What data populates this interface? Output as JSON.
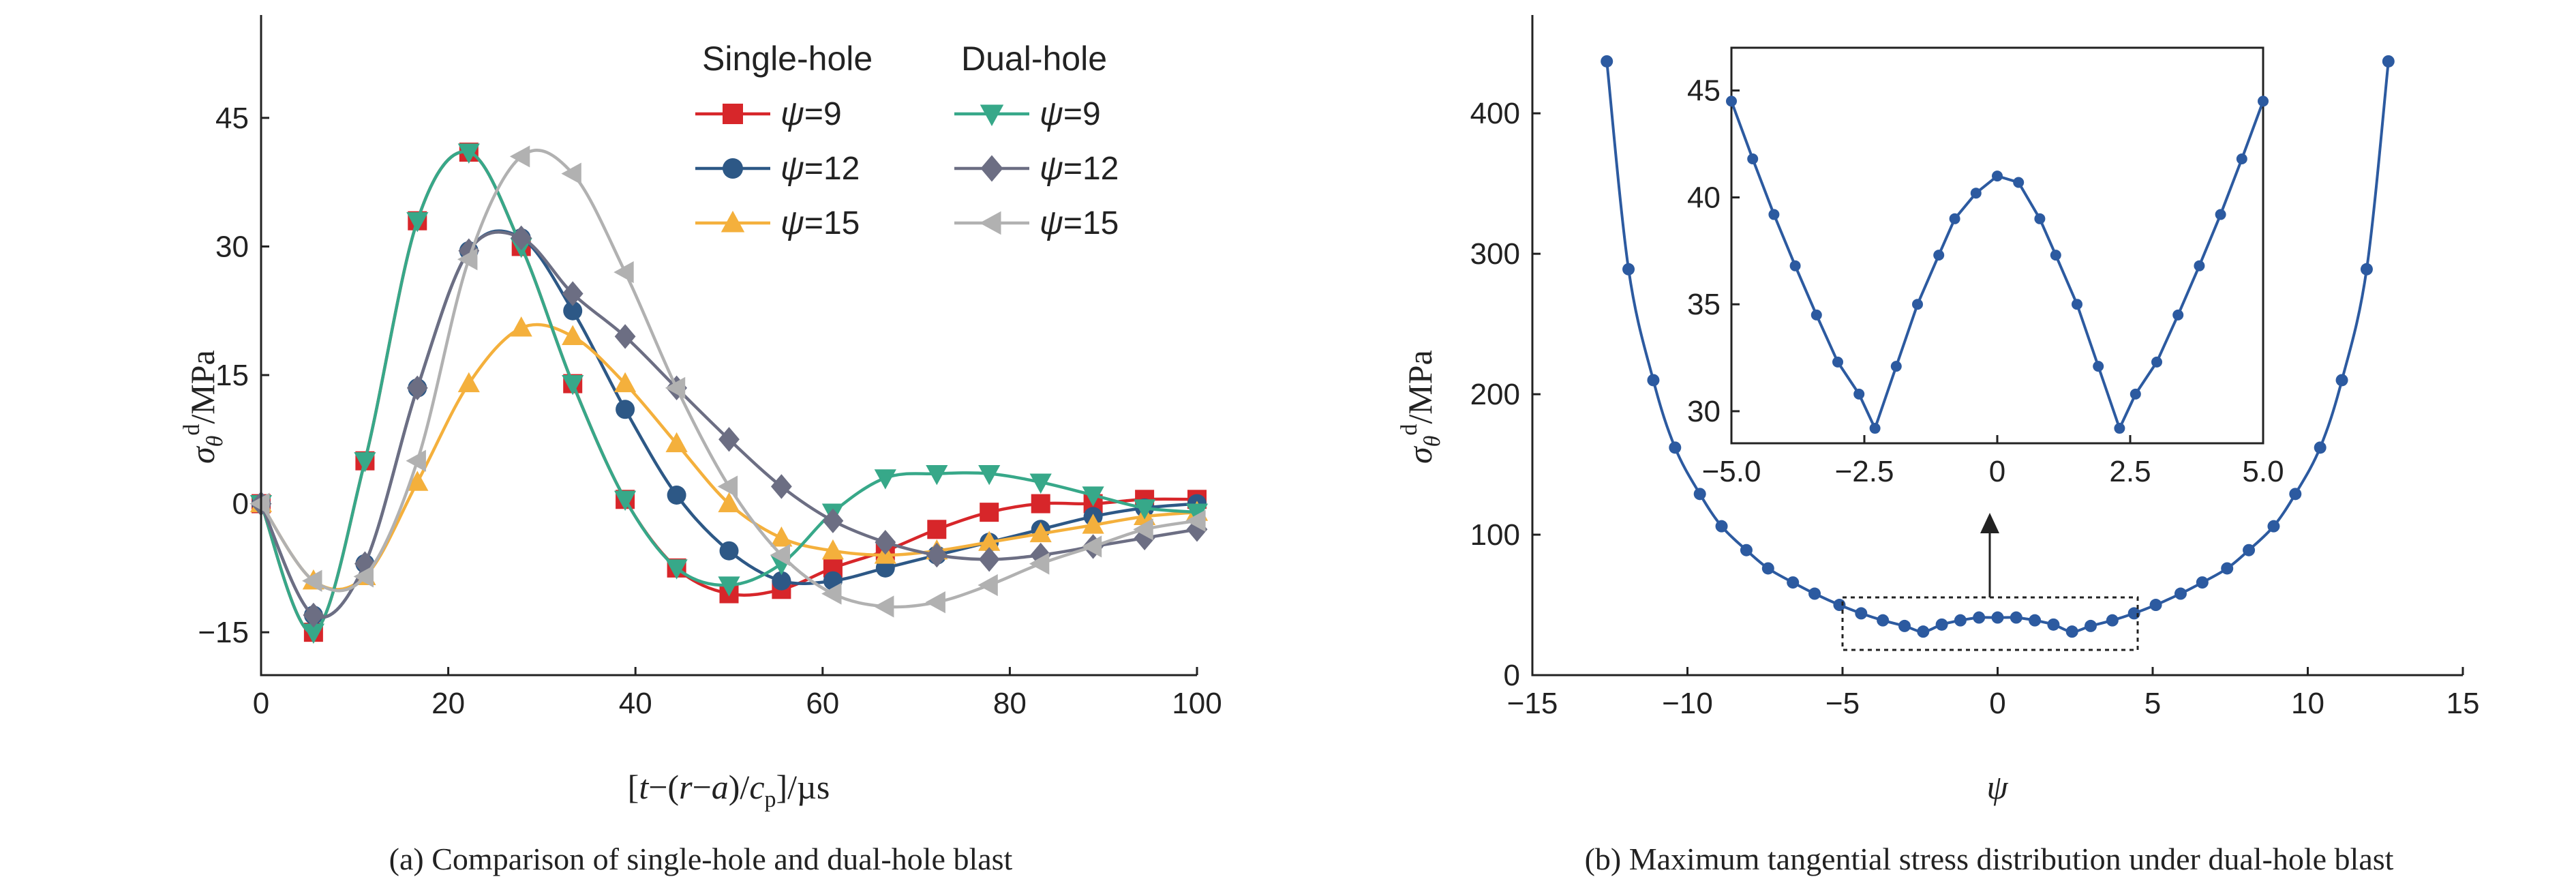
{
  "chart_data": [
    {
      "type": "line",
      "caption": "(a) Comparison of single-hole and dual-hole blast",
      "xlabel_parts": [
        "[",
        "t",
        "−(",
        "r",
        "−",
        "a",
        ")/",
        "c",
        "p",
        "]/µs"
      ],
      "ylabel_parts": [
        "σ",
        "θ",
        "d",
        "/MPa"
      ],
      "xlim": [
        0,
        100
      ],
      "ylim": [
        -20,
        57
      ],
      "xticks": [
        0,
        20,
        40,
        60,
        80,
        100
      ],
      "yticks": [
        -15,
        0,
        15,
        30,
        45
      ],
      "grid": false,
      "legend": {
        "placement": "top-right",
        "headers": [
          "Single-hole",
          "Dual-hole"
        ],
        "symbol": "ψ",
        "entry_labels": [
          "=9",
          "=12",
          "=15",
          "=9",
          "=12",
          "=15"
        ]
      },
      "series": [
        {
          "group": "Single-hole",
          "psi": 9,
          "color": "#d7262a",
          "marker": "square",
          "x": [
            0,
            5.6,
            11.1,
            16.7,
            22.2,
            27.8,
            33.3,
            38.9,
            44.4,
            50.0,
            55.6,
            61.1,
            66.7,
            72.2,
            77.8,
            83.3,
            88.9,
            94.4,
            100
          ],
          "y": [
            0,
            -15,
            5,
            33,
            41,
            30,
            14,
            0.5,
            -7.5,
            -10.5,
            -10,
            -7.5,
            -5.5,
            -3,
            -1,
            0,
            0,
            0.5,
            0.5
          ]
        },
        {
          "group": "Single-hole",
          "psi": 12,
          "color": "#2d5886",
          "marker": "circle",
          "x": [
            0,
            5.6,
            11.1,
            16.7,
            22.2,
            27.8,
            33.3,
            38.9,
            44.4,
            50.0,
            55.6,
            61.1,
            66.7,
            72.2,
            77.8,
            83.3,
            88.9,
            94.4,
            100
          ],
          "y": [
            0,
            -13,
            -7,
            13.5,
            29.5,
            31,
            22.5,
            11,
            1,
            -5.5,
            -9,
            -9,
            -7.5,
            -6,
            -4.5,
            -3,
            -1.5,
            -0.5,
            0
          ]
        },
        {
          "group": "Single-hole",
          "psi": 15,
          "color": "#f4b03c",
          "marker": "triangle-up",
          "x": [
            0,
            5.6,
            11.1,
            16.7,
            22.2,
            27.8,
            33.3,
            38.9,
            44.4,
            50.0,
            55.6,
            61.1,
            66.7,
            72.2,
            77.8,
            83.3,
            88.9,
            94.4,
            100
          ],
          "y": [
            0,
            -9,
            -8.5,
            2.5,
            14,
            20.5,
            19.5,
            14,
            7,
            0,
            -4,
            -5.5,
            -6,
            -5.5,
            -4.5,
            -3.5,
            -2.5,
            -1.5,
            -1
          ]
        },
        {
          "group": "Dual-hole",
          "psi": 9,
          "color": "#37a889",
          "marker": "triangle-down",
          "x": [
            0,
            5.6,
            11.1,
            16.7,
            22.2,
            27.8,
            33.3,
            38.9,
            44.4,
            50.0,
            55.6,
            61.1,
            66.7,
            72.2,
            77.8,
            83.3,
            88.9,
            94.4,
            100
          ],
          "y": [
            0,
            -15,
            5,
            33,
            41,
            30,
            14,
            0.5,
            -7.5,
            -9.5,
            -7,
            -1,
            3,
            3.5,
            3.5,
            2.5,
            1,
            -0.5,
            -1
          ]
        },
        {
          "group": "Dual-hole",
          "psi": 12,
          "color": "#6c6e83",
          "marker": "diamond",
          "x": [
            0,
            5.6,
            11.1,
            16.7,
            22.2,
            27.8,
            33.3,
            38.9,
            44.4,
            50.0,
            55.6,
            61.1,
            66.7,
            72.2,
            77.8,
            83.3,
            88.9,
            94.4,
            100
          ],
          "y": [
            0,
            -13,
            -7,
            13.5,
            29.5,
            31,
            24.5,
            19.5,
            13.5,
            7.5,
            2,
            -2,
            -4.5,
            -6,
            -6.5,
            -6,
            -5,
            -4,
            -3
          ]
        },
        {
          "group": "Dual-hole",
          "psi": 15,
          "color": "#b1b1b1",
          "marker": "triangle-left",
          "x": [
            0,
            5.6,
            11.1,
            16.7,
            22.2,
            27.8,
            33.3,
            38.9,
            44.4,
            50.0,
            55.6,
            61.1,
            66.7,
            72.2,
            77.8,
            83.3,
            88.9,
            94.4,
            100
          ],
          "y": [
            0,
            -9,
            -8.5,
            5,
            28.5,
            40.5,
            38.5,
            27,
            13.5,
            2,
            -6,
            -10.5,
            -12,
            -11.5,
            -9.5,
            -7,
            -5,
            -3,
            -2
          ]
        }
      ]
    },
    {
      "type": "line",
      "caption": "(b) Maximum tangential stress distribution under dual-hole blast",
      "xlabel": "ψ",
      "ylabel_parts": [
        "σ",
        "θ",
        "d",
        "/MPa"
      ],
      "xlim": [
        -15,
        15
      ],
      "ylim": [
        0,
        470
      ],
      "xticks": [
        -15,
        -10,
        -5,
        0,
        5,
        10,
        15
      ],
      "yticks": [
        0,
        100,
        200,
        300,
        400
      ],
      "grid": false,
      "color": "#2c5aa0",
      "marker": "circle",
      "series": [
        {
          "x": [
            -12.6,
            -11.9,
            -11.1,
            -10.4,
            -9.6,
            -8.9,
            -8.1,
            -7.4,
            -6.6,
            -5.9,
            -5.1,
            -4.4,
            -3.7,
            -3.0,
            -2.4,
            -1.8,
            -1.2,
            -0.6,
            0,
            0.6,
            1.2,
            1.8,
            2.4,
            3.0,
            3.7,
            4.4,
            5.1,
            5.9,
            6.6,
            7.4,
            8.1,
            8.9,
            9.6,
            10.4,
            11.1,
            11.9,
            12.6
          ],
          "y": [
            437,
            289,
            210,
            162,
            129,
            106,
            89,
            76,
            66,
            58,
            50,
            44,
            39,
            35,
            31,
            36,
            39,
            41,
            41,
            41,
            39,
            36,
            31,
            35,
            39,
            44,
            50,
            58,
            66,
            76,
            89,
            106,
            129,
            162,
            210,
            289,
            437
          ]
        }
      ],
      "inset": {
        "xlim": [
          -5,
          5
        ],
        "ylim": [
          28.5,
          47
        ],
        "xticks": [
          -5,
          -2.5,
          0,
          2.5,
          5
        ],
        "xtick_labels": [
          "−5.0",
          "−2.5",
          "0",
          "2.5",
          "5.0"
        ],
        "yticks": [
          30,
          35,
          40,
          45
        ],
        "x": [
          -5.0,
          -4.6,
          -4.2,
          -3.8,
          -3.4,
          -3.0,
          -2.6,
          -2.3,
          -1.9,
          -1.5,
          -1.1,
          -0.8,
          -0.4,
          0,
          0.4,
          0.8,
          1.1,
          1.5,
          1.9,
          2.3,
          2.6,
          3.0,
          3.4,
          3.8,
          4.2,
          4.6,
          5.0
        ],
        "y": [
          44.5,
          41.8,
          39.2,
          36.8,
          34.5,
          32.3,
          30.8,
          29.2,
          32.1,
          35.0,
          37.3,
          39.0,
          40.2,
          41.0,
          40.7,
          39.0,
          37.3,
          35.0,
          32.1,
          29.2,
          30.8,
          32.3,
          34.5,
          36.8,
          39.2,
          41.8,
          44.5
        ]
      }
    }
  ]
}
